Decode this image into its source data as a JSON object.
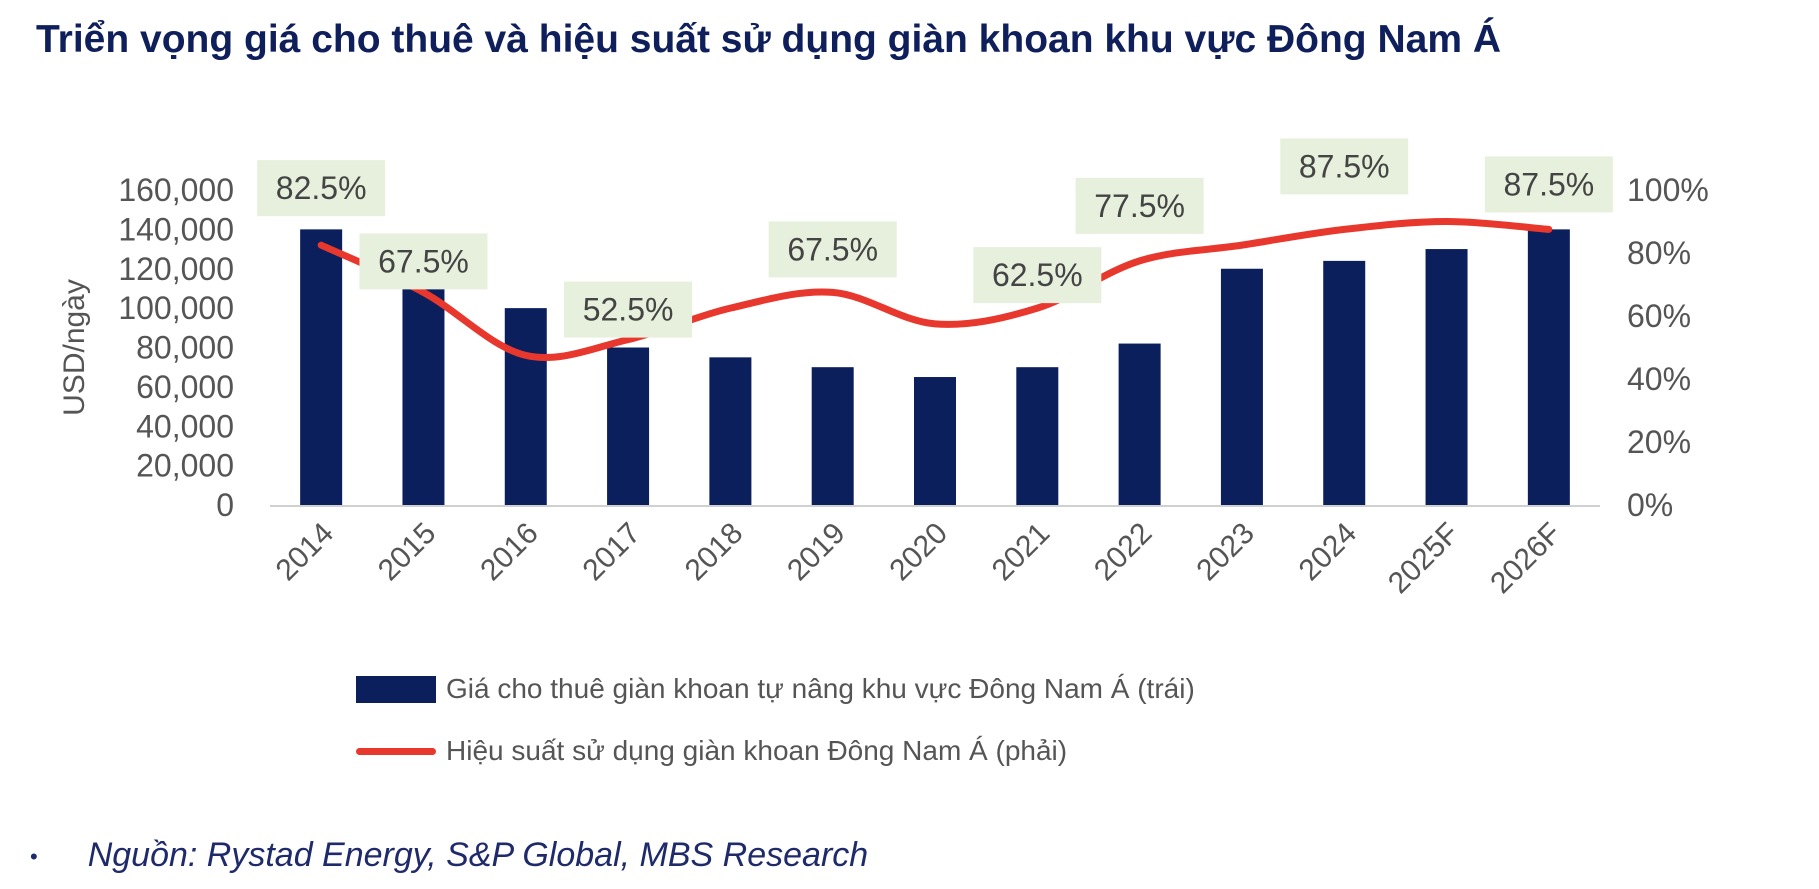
{
  "title": "Triển vọng giá cho thuê và hiệu suất sử dụng giàn khoan khu vực Đông Nam Á",
  "chart_data": {
    "type": "bar+line",
    "categories": [
      "2014",
      "2015",
      "2016",
      "2017",
      "2018",
      "2019",
      "2020",
      "2021",
      "2022",
      "2023",
      "2024",
      "2025F",
      "2026F"
    ],
    "series": [
      {
        "name": "Giá cho thuê giàn khoan tự nâng khu vực Đông Nam Á (trái)",
        "type": "bar",
        "axis": "left",
        "color": "#0A1F5C",
        "values": [
          140000,
          120000,
          100000,
          80000,
          75000,
          70000,
          65000,
          70000,
          82000,
          120000,
          124000,
          130000,
          140000
        ]
      },
      {
        "name": "Hiệu suất sử dụng giàn khoan Đông Nam Á (phải)",
        "type": "line",
        "smooth": true,
        "axis": "right",
        "color": "#E8372C",
        "values": [
          82.5,
          67.5,
          47.5,
          52.5,
          62.5,
          67.5,
          57.5,
          62.5,
          77.5,
          82.5,
          87.5,
          90,
          87.5
        ]
      }
    ],
    "data_labels": [
      {
        "category": "2014",
        "text": "82.5%"
      },
      {
        "category": "2015",
        "text": "67.5%"
      },
      {
        "category": "2017",
        "text": "52.5%"
      },
      {
        "category": "2019",
        "text": "67.5%"
      },
      {
        "category": "2021",
        "text": "62.5%"
      },
      {
        "category": "2022",
        "text": "77.5%"
      },
      {
        "category": "2024",
        "text": "87.5%"
      },
      {
        "category": "2026F",
        "text": "87.5%"
      }
    ],
    "data_label_bg": "#E6F0DC",
    "ylabel": "USD/ngày",
    "ylim": [
      0,
      160000
    ],
    "yticks": [
      "0",
      "20,000",
      "40,000",
      "60,000",
      "80,000",
      "100,000",
      "120,000",
      "140,000",
      "160,000"
    ],
    "y2lim": [
      0,
      100
    ],
    "y2ticks": [
      "0%",
      "20%",
      "40%",
      "60%",
      "80%",
      "100%"
    ],
    "grid": false,
    "legend": "bottom"
  },
  "source": "Nguồn: Rystad Energy, S&P Global, MBS Research"
}
